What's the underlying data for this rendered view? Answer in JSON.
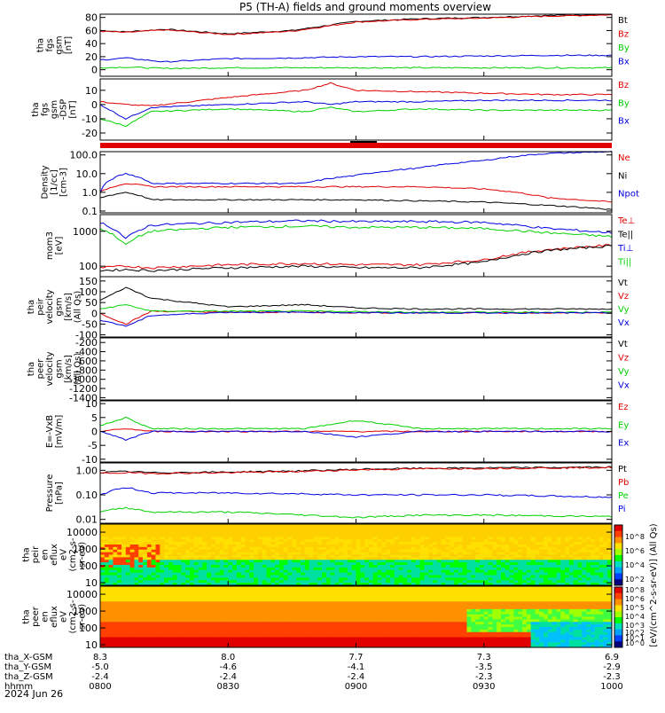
{
  "title": "P5 (TH-A) fields and ground moments overview",
  "date_label": "2024 Jun 26",
  "colorbar_label": "[eV/(cm^2-s-sr-eV)] (All Qs)",
  "colorbar_ticks": [
    "10^8",
    "10^6",
    "10^4",
    "10^2",
    "10^8",
    "10^6",
    "10^5",
    "10^4",
    "10^3",
    "10^2",
    "10^1",
    "10^0"
  ],
  "footer": {
    "rows": [
      {
        "label": "tha_X-GSM",
        "values": [
          "8.3",
          "8.0",
          "7.7",
          "7.3",
          "6.9"
        ]
      },
      {
        "label": "tha_Y-GSM",
        "values": [
          "-5.0",
          "-4.6",
          "-4.1",
          "-3.5",
          "-2.9"
        ]
      },
      {
        "label": "tha_Z-GSM",
        "values": [
          "-2.4",
          "-2.4",
          "-2.4",
          "-2.3",
          "-2.3"
        ]
      },
      {
        "label": "hhmm",
        "values": [
          "0800",
          "0830",
          "0900",
          "0930",
          "1000"
        ]
      }
    ]
  },
  "colors": {
    "black": "#000000",
    "red": "#e00000",
    "blue": "#0000e0",
    "green": "#00d000"
  },
  "chart_data": [
    {
      "type": "line",
      "ylabel": [
        "tha",
        "fgs",
        "gsm",
        "[nT]"
      ],
      "ylim": [
        -10,
        85
      ],
      "yticks": [
        "80",
        "60",
        "40",
        "20",
        "0"
      ],
      "ytick_values": [
        80,
        60,
        40,
        20,
        0
      ],
      "series": [
        {
          "name": "Bt",
          "color": "black"
        },
        {
          "name": "Bz",
          "color": "red"
        },
        {
          "name": "By",
          "color": "green"
        },
        {
          "name": "Bx",
          "color": "blue"
        }
      ],
      "x_hours": [
        0,
        0.1,
        0.25,
        0.5,
        0.75,
        1.0,
        1.25,
        1.5,
        1.75,
        2.0
      ],
      "values": {
        "Bt": [
          60,
          58,
          62,
          55,
          60,
          74,
          78,
          80,
          83,
          85
        ],
        "Bz": [
          59,
          57,
          61,
          54,
          59,
          73,
          77,
          79,
          82,
          84
        ],
        "By": [
          3,
          4,
          2,
          3,
          3,
          3,
          3,
          3,
          3,
          3
        ],
        "Bx": [
          15,
          18,
          12,
          17,
          18,
          20,
          20,
          21,
          22,
          22
        ]
      }
    },
    {
      "type": "line",
      "ylabel": [
        "tha",
        "fgs",
        "gsm",
        "-DSP",
        "[nT]"
      ],
      "ylim": [
        -25,
        18
      ],
      "yticks": [
        "10",
        "0",
        "-10",
        "-20"
      ],
      "ytick_values": [
        10,
        0,
        -10,
        -20
      ],
      "series": [
        {
          "name": "Bz",
          "color": "red"
        },
        {
          "name": "By",
          "color": "green"
        },
        {
          "name": "Bx",
          "color": "blue"
        }
      ],
      "x_hours": [
        0,
        0.1,
        0.2,
        0.5,
        0.8,
        0.9,
        1.0,
        1.25,
        1.5,
        1.75,
        2.0
      ],
      "values": {
        "Bz": [
          2,
          0,
          -1,
          5,
          10,
          15,
          10,
          9,
          8,
          7,
          7
        ],
        "By": [
          -10,
          -15,
          -5,
          -3,
          -5,
          -2,
          -5,
          -3,
          -4,
          -4,
          -4
        ],
        "Bx": [
          0,
          -10,
          -2,
          0,
          2,
          0,
          2,
          2,
          3,
          3,
          3
        ]
      }
    },
    {
      "type": "line",
      "ylabel": [
        "Density",
        "[1/cc]",
        "[cm-3]"
      ],
      "ylim": [
        0.08,
        150
      ],
      "yscale": "log",
      "yticks": [
        "100.0",
        "10.0",
        "1.0",
        "0.1"
      ],
      "ytick_values": [
        100,
        10,
        1,
        0.1
      ],
      "series": [
        {
          "name": "Ne",
          "color": "red"
        },
        {
          "name": "Ni",
          "color": "black"
        },
        {
          "name": "Npot",
          "color": "blue"
        }
      ],
      "x_hours": [
        0,
        0.1,
        0.2,
        0.5,
        0.8,
        1.0,
        1.25,
        1.5,
        1.75,
        2.0
      ],
      "values": {
        "Ne": [
          1,
          3,
          2,
          2,
          2,
          2,
          2,
          1.5,
          0.5,
          0.3
        ],
        "Ni": [
          0.5,
          1,
          0.4,
          0.4,
          0.4,
          0.4,
          0.35,
          0.3,
          0.2,
          0.12
        ],
        "Npot": [
          1,
          10,
          3,
          3,
          3,
          8,
          20,
          50,
          120,
          150
        ]
      }
    },
    {
      "type": "line",
      "ylabel": [
        "mom3",
        "[eV]"
      ],
      "ylim": [
        50,
        3000
      ],
      "yscale": "log",
      "yticks": [
        "1000",
        "100"
      ],
      "ytick_values": [
        1000,
        100
      ],
      "series": [
        {
          "name": "Te⊥",
          "color": "red"
        },
        {
          "name": "Te||",
          "color": "black"
        },
        {
          "name": "Ti⊥",
          "color": "blue"
        },
        {
          "name": "Ti||",
          "color": "green"
        }
      ],
      "x_hours": [
        0,
        0.1,
        0.2,
        0.5,
        0.8,
        1.0,
        1.25,
        1.5,
        1.75,
        2.0
      ],
      "values": {
        "Te⊥": [
          90,
          100,
          90,
          110,
          120,
          110,
          110,
          150,
          300,
          400
        ],
        "Te||": [
          75,
          80,
          75,
          90,
          100,
          90,
          90,
          130,
          280,
          380
        ],
        "Ti⊥": [
          1800,
          600,
          1500,
          1800,
          2000,
          1900,
          1900,
          1800,
          1200,
          900
        ],
        "Ti||": [
          1200,
          400,
          1000,
          1300,
          1400,
          1300,
          1300,
          1200,
          900,
          700
        ]
      }
    },
    {
      "type": "line",
      "ylabel": [
        "tha",
        "peir",
        "velocity",
        "gsm",
        "[km/s]",
        "(All Qs)"
      ],
      "ylim": [
        -110,
        170
      ],
      "yticks": [
        "150",
        "100",
        "50",
        "0",
        "-50",
        "-100"
      ],
      "ytick_values": [
        150,
        100,
        50,
        0,
        -50,
        -100
      ],
      "series": [
        {
          "name": "Vt",
          "color": "black"
        },
        {
          "name": "Vz",
          "color": "red"
        },
        {
          "name": "Vy",
          "color": "green"
        },
        {
          "name": "Vx",
          "color": "blue"
        }
      ],
      "x_hours": [
        0,
        0.1,
        0.2,
        0.5,
        0.8,
        1.0,
        1.25,
        1.5,
        1.75,
        2.0
      ],
      "values": {
        "Vt": [
          60,
          120,
          70,
          30,
          40,
          25,
          20,
          20,
          20,
          20
        ],
        "Vz": [
          0,
          -50,
          10,
          5,
          5,
          3,
          2,
          2,
          2,
          2
        ],
        "Vy": [
          20,
          40,
          10,
          10,
          10,
          8,
          5,
          5,
          5,
          5
        ],
        "Vx": [
          -30,
          -60,
          -10,
          5,
          5,
          3,
          2,
          2,
          2,
          2
        ]
      }
    },
    {
      "type": "line",
      "ylabel": [
        "tha",
        "peer",
        "velocity",
        "gsm",
        "[km/s]",
        "(All Qs)"
      ],
      "ylim": [
        -1450,
        -100
      ],
      "yticks": [
        "-200",
        "-400",
        "-600",
        "-800",
        "-1000",
        "-1200",
        "-1400"
      ],
      "ytick_values": [
        -200,
        -400,
        -600,
        -800,
        -1000,
        -1200,
        -1400
      ],
      "series": [
        {
          "name": "Vt",
          "color": "black"
        },
        {
          "name": "Vz",
          "color": "red"
        },
        {
          "name": "Vy",
          "color": "green"
        },
        {
          "name": "Vx",
          "color": "blue"
        }
      ],
      "values": {}
    },
    {
      "type": "line",
      "ylabel": [
        "E=-VxB",
        "[mV/m]"
      ],
      "ylim": [
        -11,
        11
      ],
      "yticks": [
        "10",
        "5",
        "0",
        "-5",
        "-10"
      ],
      "ytick_values": [
        10,
        5,
        0,
        -5,
        -10
      ],
      "series": [
        {
          "name": "Ez",
          "color": "red"
        },
        {
          "name": "Ey",
          "color": "green"
        },
        {
          "name": "Ex",
          "color": "blue"
        }
      ],
      "x_hours": [
        0,
        0.1,
        0.2,
        0.5,
        0.8,
        1.0,
        1.25,
        1.5,
        1.75,
        2.0
      ],
      "values": {
        "Ez": [
          0,
          1,
          0,
          0,
          0,
          0,
          0,
          0,
          0,
          0
        ],
        "Ey": [
          2,
          5,
          1,
          1,
          1,
          4,
          1,
          1,
          1,
          1
        ],
        "Ex": [
          0,
          -3,
          0,
          0,
          0,
          -2,
          0,
          0,
          0,
          0
        ]
      }
    },
    {
      "type": "line",
      "ylabel": [
        "Pressure",
        "[nPa]"
      ],
      "ylim": [
        0.007,
        2
      ],
      "yscale": "log",
      "yticks": [
        "1.00",
        "0.10",
        "0.01"
      ],
      "ytick_values": [
        1,
        0.1,
        0.01
      ],
      "series": [
        {
          "name": "Pt",
          "color": "black"
        },
        {
          "name": "Pb",
          "color": "red"
        },
        {
          "name": "Pe",
          "color": "green"
        },
        {
          "name": "Pi",
          "color": "blue"
        }
      ],
      "x_hours": [
        0,
        0.1,
        0.2,
        0.5,
        0.8,
        1.0,
        1.25,
        1.5,
        1.75,
        2.0
      ],
      "values": {
        "Pt": [
          0.8,
          0.9,
          0.8,
          0.85,
          0.95,
          1.1,
          1.2,
          1.25,
          1.3,
          1.35
        ],
        "Pb": [
          0.75,
          0.8,
          0.75,
          0.8,
          0.9,
          1.05,
          1.15,
          1.2,
          1.25,
          1.3
        ],
        "Pe": [
          0.02,
          0.03,
          0.02,
          0.02,
          0.015,
          0.012,
          0.015,
          0.015,
          0.014,
          0.013
        ],
        "Pi": [
          0.1,
          0.2,
          0.12,
          0.12,
          0.11,
          0.1,
          0.1,
          0.1,
          0.09,
          0.08
        ]
      }
    },
    {
      "type": "heatmap",
      "ylabel": [
        "tha",
        "peir",
        "en",
        "eflux",
        "eV",
        "(cm2-s-",
        "sr-eV)"
      ],
      "ylim": [
        7,
        30000
      ],
      "yscale": "log",
      "yticks": [
        "10000",
        "1000",
        "100",
        "10"
      ],
      "ytick_values": [
        10000,
        1000,
        100,
        10
      ]
    },
    {
      "type": "heatmap",
      "ylabel": [
        "tha",
        "peer",
        "en",
        "eflux",
        "eV",
        "(cm2-s-",
        "sr-eV)"
      ],
      "ylim": [
        7,
        30000
      ],
      "yscale": "log",
      "yticks": [
        "10000",
        "1000",
        "100",
        "10"
      ],
      "ytick_values": [
        10000,
        1000,
        100,
        10
      ]
    }
  ]
}
